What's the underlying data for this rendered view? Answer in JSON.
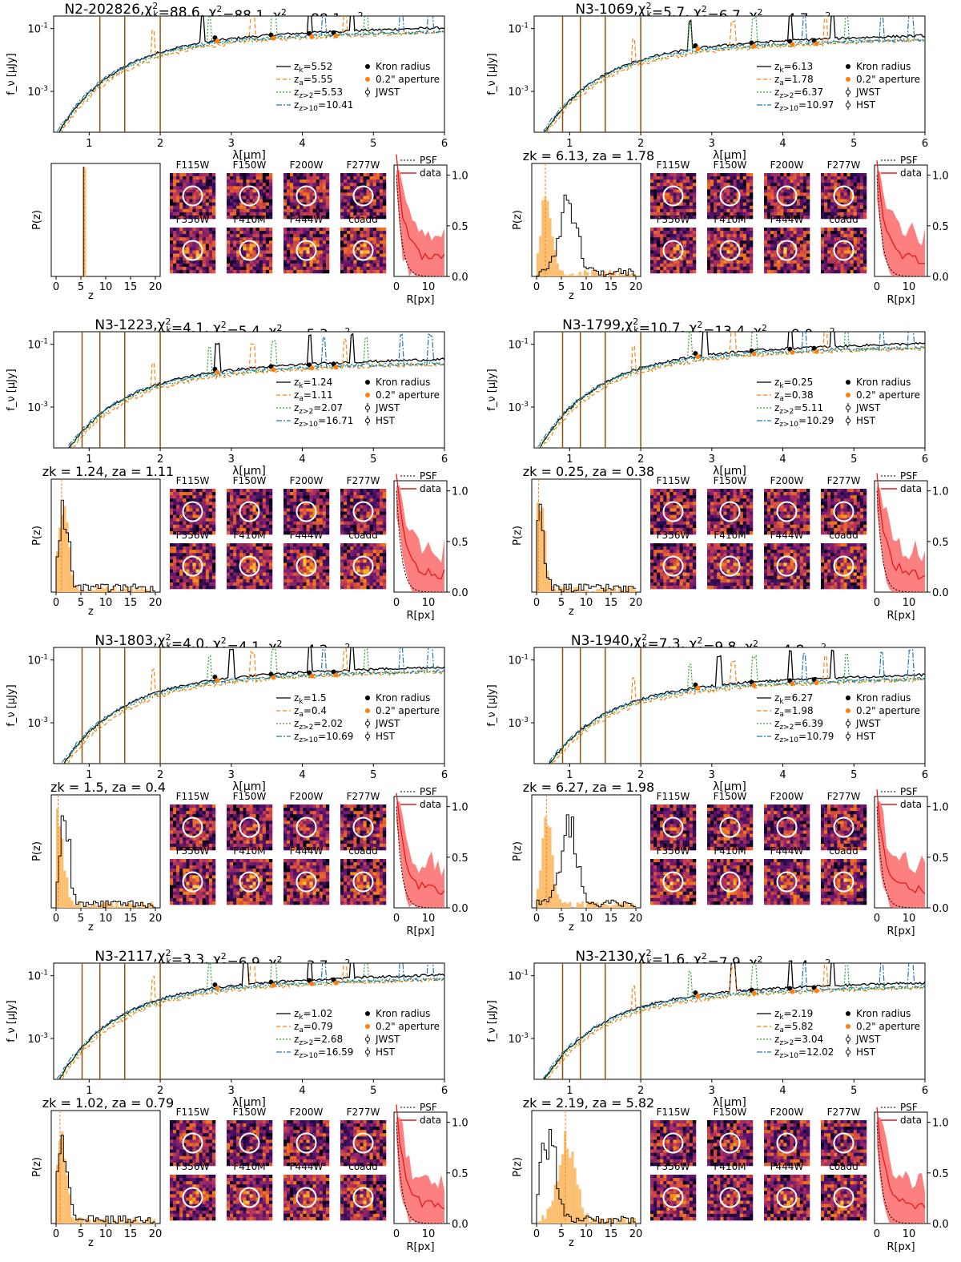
{
  "figure": {
    "sed_xlabel": "λ[μm]",
    "sed_ylabel": "f_ν [μJy]",
    "pz_xlabel": "z",
    "pz_ylabel": "P(z)",
    "prof_xlabel": "R[px]",
    "filters": [
      "F115W",
      "F150W",
      "F200W",
      "F277W",
      "F356W",
      "F410M",
      "F444W",
      "coadd"
    ],
    "prof_legend": [
      "PSF",
      "data"
    ],
    "legend_fixed": [
      "Kron radius",
      "0.2\" aperture",
      "JWST",
      "HST"
    ],
    "colors": {
      "kron": "#000000",
      "aper": "#ff7f0e",
      "zgt2": "#2ca02c",
      "zgt10": "#1f77b4",
      "data": "#e31a1c",
      "pzfill": "#fdbf6f",
      "errbar": "#8c510a"
    }
  },
  "panels": [
    {
      "id": "N2-202826",
      "title": "N2-202826,χ²k=88.6, χ²a=88.1, χ²z>2=88.1, χ²z>10=369.0",
      "zk": "5.52",
      "za": "5.55",
      "z2": "5.53",
      "z10": "10.41",
      "has_hst": false,
      "pz_title": ""
    },
    {
      "id": "N3-1069",
      "title": "N3-1069,χ²k=5.7, χ²a=6.7, χ²z>2=4.7, χ²z>10=8.1",
      "zk": "6.13",
      "za": "1.78",
      "z2": "6.37",
      "z10": "10.97",
      "has_hst": true,
      "pz_title": "z_k = 6.13, z_a = 1.78"
    },
    {
      "id": "N3-1223",
      "title": "N3-1223,χ²k=4.1, χ²a=5.4, χ²z>2=5.3, χ²z>10=3.0",
      "zk": "1.24",
      "za": "1.11",
      "z2": "2.07",
      "z10": "16.71",
      "has_hst": true,
      "pz_title": "z_k = 1.24, z_a = 1.11"
    },
    {
      "id": "N3-1799",
      "title": "N3-1799,χ²k=10.7, χ²a=13.4, χ²z>2=9.0, χ²z>10=11.0",
      "zk": "0.25",
      "za": "0.38",
      "z2": "5.11",
      "z10": "10.29",
      "has_hst": true,
      "pz_title": "z_k = 0.25, z_a = 0.38"
    },
    {
      "id": "N3-1803",
      "title": "N3-1803,χ²k=4.0, χ²a=4.1, χ²z>2=4.2, χ²z>10=3.5",
      "zk": "1.5",
      "za": "0.4",
      "z2": "2.02",
      "z10": "10.69",
      "has_hst": true,
      "pz_title": "z_k = 1.5, z_a = 0.4"
    },
    {
      "id": "N3-1940",
      "title": "N3-1940,χ²k=7.3, χ²a=9.8, χ²z>2=4.8, χ²z>10=11.5",
      "zk": "6.27",
      "za": "1.98",
      "z2": "6.39",
      "z10": "10.79",
      "has_hst": true,
      "pz_title": "z_k = 6.27, z_a = 1.98"
    },
    {
      "id": "N3-2117",
      "title": "N3-2117,χ²k=3.3, χ²a=6.9, χ²z>2=3.7, χ²z>10=2.7",
      "zk": "1.02",
      "za": "0.79",
      "z2": "2.68",
      "z10": "16.59",
      "has_hst": true,
      "pz_title": "z_k = 1.02, z_a = 0.79"
    },
    {
      "id": "N3-2130",
      "title": "N3-2130,χ²k=1.6, χ²a=7.9, χ²z>2=1.4, χ²z>10=1.2",
      "zk": "2.19",
      "za": "5.82",
      "z2": "3.04",
      "z10": "12.02",
      "has_hst": true,
      "pz_title": "z_k = 2.19, z_a = 5.82"
    }
  ],
  "chart_data": {
    "type": "line",
    "xlabel": "λ[μm]",
    "ylabel": "f_ν [μJy]",
    "xlim": [
      0.5,
      6
    ],
    "yscale": "log",
    "series": [
      {
        "name": "z_k",
        "style": "solid black"
      },
      {
        "name": "z_a",
        "style": "dashed orange"
      },
      {
        "name": "z>2",
        "style": "dotted green"
      },
      {
        "name": "z>10",
        "style": "dash-dot blue"
      }
    ],
    "pz_xlim": [
      0,
      20
    ],
    "profile_xlim": [
      0,
      15
    ],
    "profile_ylim": [
      0.0,
      1.1
    ]
  }
}
